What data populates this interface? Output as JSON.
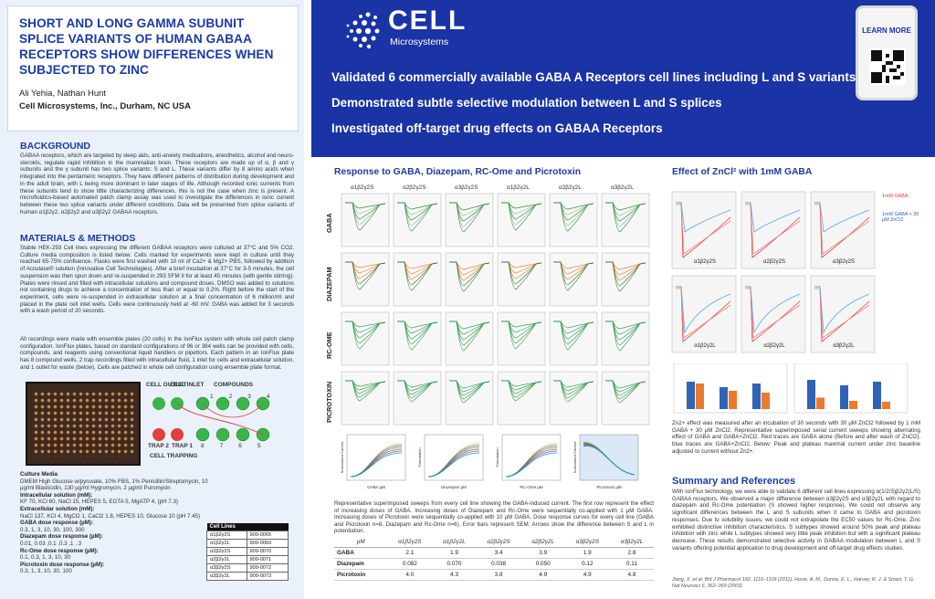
{
  "left": {
    "title": "SHORT AND LONG GAMMA SUBUNIT SPLICE VARIANTS OF HUMAN GABAA RECEPTORS SHOW DIFFERENCES WHEN SUBJECTED TO ZINC",
    "authors": "Ali Yehia, Nathan Hunt",
    "affiliation": "Cell Microsystems, Inc., Durham, NC USA",
    "background_heading": "BACKGROUND",
    "background_text": "GABAA receptors, which are targeted by sleep aids, anti-anxiety medications, anesthetics, alcohol and neuro-steroids, regulate rapid inhibition in the mammalian brain. These receptors are made up of α, β and γ subunits and the γ subunit has two splice variants: S and L. These variants differ by 8 amino acids when integrated into the pentameric receptors. They have different patterns of distribution during development and in the adult brain, with L being more dominant in later stages of life. Although recorded ionic currents from these subunits tend to show little characterizing differences, this is not the case when zinc is present. A microfluidics-based automated patch clamp assay was used to investigate the differences in ionic current between these two splice variants under different conditions. Data will be presented from splice variants of human α1β2γ2, α2β2γ2 and α3β2γ2 GABAA receptors.",
    "methods_heading": "MATERIALS & METHODS",
    "methods_text_1": "Stable HEK-293 Cell lines expressing the different GABAA receptors were cultured at 37°C and 5% CO2. Culture media composition is listed below. Cells marked for experiments were kept in culture until they reached 65-75% confluence. Flasks were first washed with 10 ml of Ca2+ & Mg2+ PBS, followed by addition of Accutase® solution (Innovative Cell Technologies). After a brief incubation at 37°C for 3-5 minutes, the cell suspension was then spun down and re-suspended in 293 SFM II for at least 45 minutes (with gentle stirring). Plates were rinsed and filled with intracellular solutions and compound doses. DMSO was added to solutions not containing drugs to achieve a concentration of less than or equal to 0.2%. Right before the start of the experiment, cells were re-suspended in extracellular solution at a final concentration of 6 million/ml and placed in the plate cell inlet wells. Cells were continuously held at -60 mV. GABA was added for 3 seconds with a wash period of 20 seconds.",
    "methods_text_2": "All recordings were made with ensemble plates (20 cells) in the IonFlux system with whole cell patch clamp configuration. IonFlux plates, based on standard configurations of 96 or 384 wells can be provided with cells, compounds, and reagents using conventional liquid handlers or pipettors. Each pattern in an IonFlux plate has 8 compound wells, 2 trap recordings filled with intracellular fluid, 1 inlet for cells and extracellular solution, and 1 outlet for waste (below). Cells are patched in whole cell configuration using ensemble plate format.",
    "diagram": {
      "cell_outlet": "CELL OUTLET",
      "cell_inlet": "CELL INLET",
      "compounds": "COMPOUNDS",
      "trap2": "TRAP 2",
      "trap1": "TRAP 1",
      "cell_trapping": "CELL TRAPPING",
      "wells_top": [
        "1",
        "2",
        "3",
        "4"
      ],
      "wells_bottom": [
        "8",
        "7",
        "6",
        "5"
      ]
    },
    "media": {
      "culture_media_h": "Culture Media",
      "culture_media": "DMEM High Glucose w/pyruvate, 10% FBS, 1% Penicillin/Streptomycin, 10 µg/ml Blasticidin, 130 µg/ml Hygromycin, 2 µg/ml Puromycin",
      "intra_h": "Intracellular solution (mM):",
      "intra": "KF 70, KCl 60, NaCl 15, HEPES 5, EGTA 5, MgATP 4, (pH 7.3)",
      "extra_h": "Extracellular solution (mM):",
      "extra": "NaCl 137, KCl 4, MgCl2 1, CaCl2 1.8, HEPES 10, Glucose 10 (pH 7.45)",
      "gaba_h": "GABA dose response (µM):",
      "gaba": "0.3, 1, 3, 10, 30, 100, 300",
      "diaz_h": "Diazepam dose response (µM):",
      "diaz": "0.01, 0.03 ,0.1 ,0.3 ,1 , 3",
      "rcome_h": "Rc-Ome dose response (µM):",
      "rcome": "0.1, 0.3, 1, 3, 10, 30",
      "picro_h": "Picrotoxin dose response (µM):",
      "picro": "0.3, 1, 3, 10, 30, 100"
    },
    "cell_lines": {
      "header": "Cell Lines",
      "rows": [
        [
          "α1β2γ2S",
          "909-0065"
        ],
        [
          "α1β2γ2L",
          "909-0069"
        ],
        [
          "α2β2γ2S",
          "909-0070"
        ],
        [
          "α2β2γ2L",
          "909-0071"
        ],
        [
          "α3β2γ2S",
          "909-0072"
        ],
        [
          "α3β2γ2L",
          "909-0073"
        ]
      ]
    }
  },
  "banner": {
    "logo_word": "CELL",
    "logo_sub": "Microsystems",
    "line1": "Validated 6 commercially available GABA A Receptors cell lines including L and S variants",
    "line2": "Demonstrated subtle selective modulation between L and S splices",
    "line3": "Investigated off-target drug effects on GABAA Receptors",
    "learn_more": "LEARN MORE"
  },
  "middle": {
    "heading": "Response to GABA, Diazepam, RC-Ome and Picrotoxin",
    "columns": [
      "α1β2γ2S",
      "α2β2γ2S",
      "α3β2γ2S",
      "α1β2γ2L",
      "α2β2γ2L",
      "α3β2γ2L"
    ],
    "rows": [
      "GABA",
      "DIAZEPAM",
      "RC-OME",
      "PICROTOXIN"
    ],
    "caption": "Representative superimposed sweeps from every cell line showing the GABA-induced current. The first row represent the effect of increasing doses of GABA. Increasing doses of Diazepam and Rc-Ome were sequentially co-applied with 1 µM GABA. Increasing doses of Picrotoxin were sequentially co-applied with 10 µM GABA. Dose response curves for every cell line (GABA and Picrotoxin n=8, Diazepam and Rc-Ome n=6). Error bars represent SEM. Arrows show the difference between S and L in potentiation.",
    "dr_xlabels": [
      "GABA µM",
      "Diazepam µM",
      "RC-Ome µM",
      "Picrotoxin µM"
    ],
    "dr_ylabels": [
      "Normalized Current",
      "Potentiation",
      "Potentiation",
      "Normalized Current"
    ]
  },
  "ec50_table": {
    "corner": "µM",
    "headers": [
      "α1β2γ2S",
      "α1β2γ2L",
      "α2β2γ2S",
      "α2β2γ2L",
      "α3β2γ2S",
      "α3β2γ2L"
    ],
    "rows": [
      {
        "label": "GABA",
        "values": [
          "2.1",
          "1.9",
          "3.4",
          "3.9",
          "1.9",
          "2.8"
        ]
      },
      {
        "label": "Diazepam",
        "values": [
          "0.082",
          "0.070",
          "0.038",
          "0.050",
          "0.12",
          "0.11"
        ]
      },
      {
        "label": "Picrotoxin",
        "values": [
          "4.0",
          "4.3",
          "3.8",
          "4.9",
          "4.9",
          "4.8"
        ]
      }
    ]
  },
  "right": {
    "heading": "Effect of ZnCl² with 1mM GABA",
    "legend_a": "1mM GABA",
    "legend_b": "1mM GABA + 30 µM ZnCl2",
    "panel_labels": [
      "α1β2γ2S",
      "α2β2γ2S",
      "α3β2γ2S",
      "α1β2γ2L",
      "α2β2γ2L",
      "α3β2γ2L"
    ],
    "zinc_text": "Zn2+ effect was measured after an incubation of 30 seconds with 30 µM ZnCl2 followed by 1 mM GABA + 30 µM ZnCl2. Representative superimposed serial current sweeps showing alternating effect of GABA and GABA+ZnCl2. Red traces are GABA alone (Before and after wash of ZnCl2), blue traces are GABA+ZnCl2. Below: Peak and plateau maximal current under zinc baseline adjusted to current without Zn2+.",
    "summary_heading": "Summary and References",
    "summary_text": "With IonFlux technology, we were able to validate 6 different cell lines expressing α(1/2/3)β2γ2(L/S) GABAA receptors. We observed a major difference between α3β2γ2S and α3β2γ2L with regard to diazepam and Rc-Ome potentiation (S showed higher response). We could not observe any significant differences between the L and S subunits when it came to GABA and picrotoxin responses. Due to solubility issues, we could not extrapolate the EC50 values for Rc-Ome. Zinc exhibited distinctive inhibition characteristics. S subtypes showed around 50% peak and plateau inhibition with zinc while L subtypes showed very little peak inhibition but with a significant plateau decrease. These results demonstrated selective activity in GABAA modulation between L and S variants offering potential application to drug development and off-target drug effects studies.",
    "refs": "Jiang, X. et al. Brit J Pharmacol 182, 1116–1109 (2011).\nHosie, A. M., Dunne, E. L., Harvey, R. J. & Smart, T. G. Nat Neurosci 6, 362–369 (2003)."
  },
  "colors": {
    "brand_blue": "#1a33a5",
    "title_blue": "#1b3aa8",
    "left_bg": "#eaf1fa",
    "trace_red": "#e0413a",
    "trace_blue": "#5aa6e0",
    "bar_blue": "#2f63b6",
    "bar_orange": "#ec7a2e"
  }
}
